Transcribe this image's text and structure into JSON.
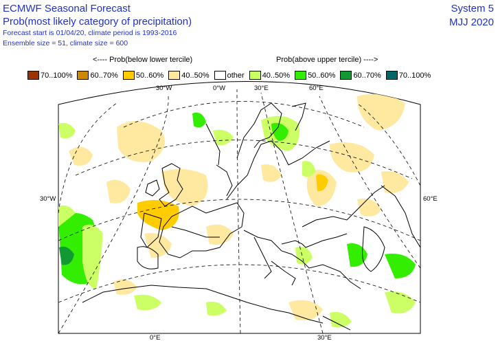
{
  "header": {
    "title": "ECMWF Seasonal Forecast",
    "subtitle": "Prob(most likely category of precipitation)",
    "forecast_line": "Forecast start is 01/04/20, climate period is 1993-2016",
    "ensemble_line": "Ensemble size = 51, climate size = 600",
    "system": "System 5",
    "period": "MJJ 2020"
  },
  "legend": {
    "below_label": "<---- Prob(below lower tercile)",
    "above_label": "Prob(above upper tercile) ---->",
    "items": [
      {
        "label": "70..100%",
        "color": "#993300"
      },
      {
        "label": "60..70%",
        "color": "#cc8800"
      },
      {
        "label": "50..60%",
        "color": "#ffcc00"
      },
      {
        "label": "40..50%",
        "color": "#ffe8a0"
      },
      {
        "label": "other",
        "color": "#ffffff"
      },
      {
        "label": "40..50%",
        "color": "#ccff66"
      },
      {
        "label": "50..60%",
        "color": "#33ee00"
      },
      {
        "label": "60..70%",
        "color": "#119933"
      },
      {
        "label": "70..100%",
        "color": "#006666"
      }
    ]
  },
  "map": {
    "graticule_labels": {
      "top_30w": "30°W",
      "top_0w": "0°W",
      "top_30e": "30°E",
      "top_60e": "60°E",
      "left_30w": "30°W",
      "right_60e": "60°E",
      "bottom_0e": "0°E",
      "bottom_30e": "30°E"
    }
  }
}
